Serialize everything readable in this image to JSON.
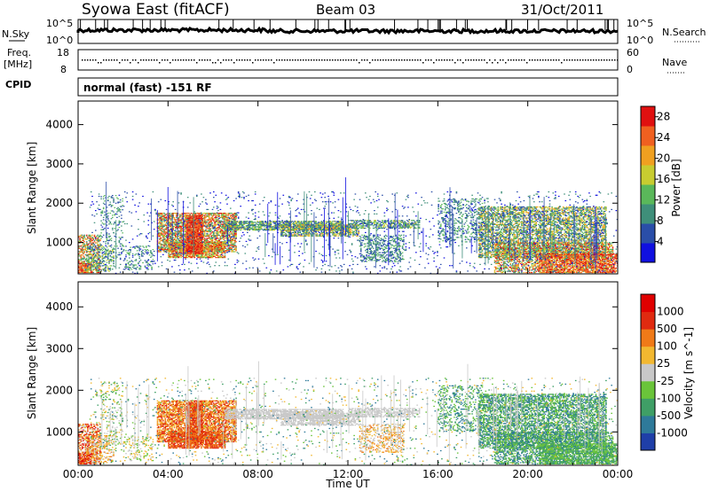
{
  "header": {
    "station": "Syowa East (fitACF)",
    "beam": "Beam 03",
    "date": "31/Oct/2011"
  },
  "top_panels": {
    "nsky_label": "N.Sky",
    "nsky_ticks": [
      "10^5",
      "10^0"
    ],
    "nsearch_label": "N.Search",
    "nsearch_ticks": [
      "10^5",
      "10^0"
    ],
    "freq_label": "Freq.",
    "freq_unit": "[MHz]",
    "freq_ticks": [
      "18",
      "8"
    ],
    "nave_label": "Nave",
    "nave_ticks": [
      "60",
      "0"
    ],
    "cpid_label": "CPID",
    "cpid_text": "normal (fast) -151 RF"
  },
  "chart_data": [
    {
      "type": "heatmap",
      "name": "power-panel",
      "ylabel": "Slant Range [km]",
      "xlim": [
        0,
        24
      ],
      "ylim": [
        200,
        4600
      ],
      "yticks": [
        "4000",
        "3000",
        "2000",
        "1000"
      ],
      "ytick_values": [
        4000,
        3000,
        2000,
        1000
      ],
      "colorbar": {
        "label": "Power [dB]",
        "ticks": [
          "28",
          "24",
          "20",
          "16",
          "12",
          "8",
          "4"
        ],
        "tick_values": [
          28,
          24,
          20,
          16,
          12,
          8,
          4
        ],
        "range": [
          0,
          30
        ],
        "colors": [
          "#1010e0",
          "#2a4ea8",
          "#3f8f7a",
          "#5ab85a",
          "#c8cc30",
          "#f0a020",
          "#f06020",
          "#e01010"
        ]
      }
    },
    {
      "type": "heatmap",
      "name": "velocity-panel",
      "ylabel": "Slant Range [km]",
      "xlabel": "Time UT",
      "xlim": [
        0,
        24
      ],
      "xticks": [
        "00:00",
        "04:00",
        "08:00",
        "12:00",
        "16:00",
        "20:00",
        "00:00"
      ],
      "xtick_values": [
        0,
        4,
        8,
        12,
        16,
        20,
        24
      ],
      "ylim": [
        200,
        4600
      ],
      "yticks": [
        "4000",
        "3000",
        "2000",
        "1000"
      ],
      "ytick_values": [
        4000,
        3000,
        2000,
        1000
      ],
      "colorbar": {
        "label": "Velocity [m s^-1]",
        "ticks": [
          "1000",
          "500",
          "100",
          "25",
          "-25",
          "-100",
          "-500",
          "-1000"
        ],
        "colors": [
          "#1f3fa8",
          "#2e7a9a",
          "#3f9f66",
          "#6ac43a",
          "#c8c8c8",
          "#f2b830",
          "#f07a18",
          "#e02a10",
          "#e00000"
        ]
      }
    }
  ],
  "colors": {
    "power_low": "#1010e0",
    "power_high": "#e01010",
    "ground_scatter": "#c0c0c0"
  }
}
